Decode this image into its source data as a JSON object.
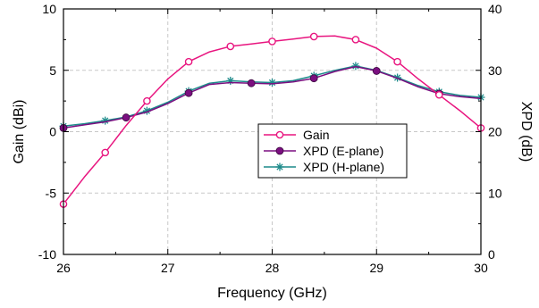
{
  "chart_data": {
    "type": "line",
    "xlabel": "Frequency (GHz)",
    "ylabel_left": "Gain (dBi)",
    "ylabel_right": "XPD (dB)",
    "xlim": [
      26,
      30
    ],
    "ylim_left": [
      -10,
      10
    ],
    "ylim_right": [
      0,
      40
    ],
    "x_ticks": [
      26,
      27,
      28,
      29,
      30
    ],
    "y_ticks_left": [
      -10,
      -5,
      0,
      5,
      10
    ],
    "y_ticks_right": [
      0,
      10,
      20,
      30,
      40
    ],
    "grid": true,
    "legend_position": "center-right",
    "series": [
      {
        "name": "Gain",
        "axis": "left",
        "color": "#e8157f",
        "marker": "open-circle",
        "curve_x": [
          26.0,
          26.2,
          26.4,
          26.6,
          26.8,
          27.0,
          27.2,
          27.4,
          27.6,
          27.8,
          28.0,
          28.2,
          28.4,
          28.6,
          28.8,
          29.0,
          29.2,
          29.4,
          29.6,
          29.8,
          30.0
        ],
        "curve_y": [
          -5.9,
          -3.7,
          -1.7,
          0.5,
          2.5,
          4.3,
          5.7,
          6.5,
          6.95,
          7.15,
          7.35,
          7.55,
          7.75,
          7.8,
          7.5,
          6.8,
          5.7,
          4.3,
          3.0,
          1.7,
          0.3
        ],
        "marker_x": [
          26.0,
          26.4,
          26.8,
          27.2,
          27.6,
          28.0,
          28.4,
          28.8,
          29.2,
          29.6,
          30.0
        ],
        "marker_y": [
          -5.9,
          -1.7,
          2.5,
          5.7,
          6.95,
          7.35,
          7.75,
          7.5,
          5.7,
          3.0,
          0.3
        ]
      },
      {
        "name": "XPD (E-plane)",
        "axis": "right",
        "color": "#7b0f80",
        "marker": "filled-circle",
        "curve_x": [
          26.0,
          26.2,
          26.4,
          26.6,
          26.8,
          27.0,
          27.2,
          27.4,
          27.6,
          27.8,
          28.0,
          28.2,
          28.4,
          28.6,
          28.8,
          29.0,
          29.2,
          29.4,
          29.6,
          29.8,
          30.0
        ],
        "curve_y": [
          20.6,
          21.1,
          21.6,
          22.3,
          23.2,
          24.6,
          26.3,
          27.7,
          28.0,
          27.9,
          27.8,
          28.1,
          28.7,
          29.8,
          30.6,
          29.9,
          28.7,
          27.3,
          26.2,
          25.7,
          25.4
        ],
        "marker_x": [
          26.0,
          26.6,
          27.2,
          27.8,
          28.4,
          29.0,
          29.6
        ],
        "marker_y": [
          20.6,
          22.3,
          26.3,
          27.9,
          28.7,
          29.9,
          26.2
        ]
      },
      {
        "name": "XPD (H-plane)",
        "axis": "right",
        "color": "#1c8a8a",
        "marker": "asterisk",
        "curve_x": [
          26.0,
          26.2,
          26.4,
          26.6,
          26.8,
          27.0,
          27.2,
          27.4,
          27.6,
          27.8,
          28.0,
          28.2,
          28.4,
          28.6,
          28.8,
          29.0,
          29.2,
          29.4,
          29.6,
          29.8,
          30.0
        ],
        "curve_y": [
          20.9,
          21.3,
          21.8,
          22.4,
          23.4,
          24.8,
          26.6,
          27.9,
          28.3,
          28.1,
          28.0,
          28.3,
          29.1,
          30.0,
          30.7,
          30.0,
          28.8,
          27.5,
          26.5,
          25.9,
          25.6
        ],
        "marker_x": [
          26.0,
          26.4,
          26.8,
          27.2,
          27.6,
          28.0,
          28.4,
          28.8,
          29.2,
          29.6,
          30.0
        ],
        "marker_y": [
          20.9,
          21.8,
          23.4,
          26.6,
          28.3,
          28.0,
          29.1,
          30.7,
          28.8,
          26.5,
          25.6
        ]
      }
    ]
  }
}
